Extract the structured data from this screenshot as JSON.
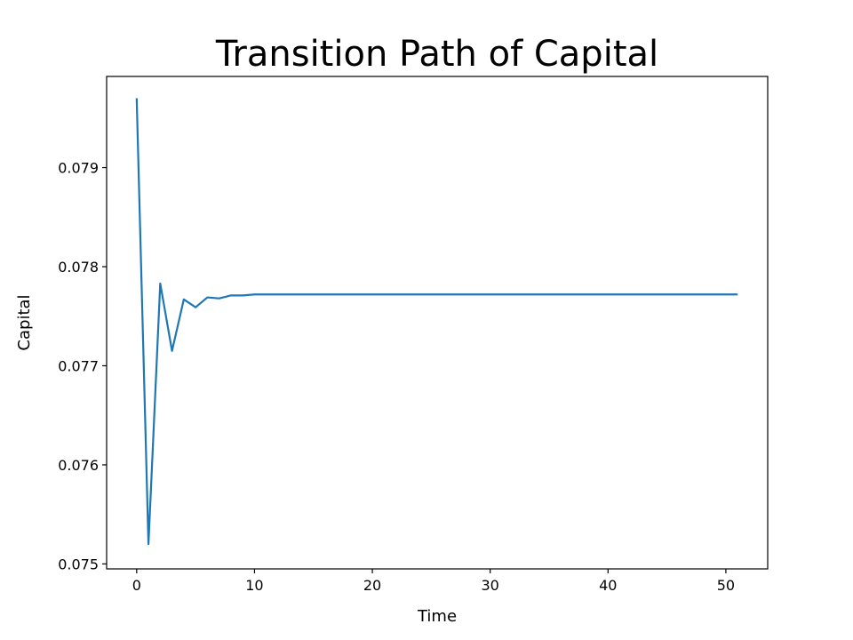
{
  "chart_data": {
    "type": "line",
    "title": "Transition Path of Capital",
    "xlabel": "Time",
    "ylabel": "Capital",
    "xlim": [
      -2.55,
      53.55
    ],
    "ylim": [
      0.07495,
      0.07992
    ],
    "x_ticks": [
      0,
      10,
      20,
      30,
      40,
      50
    ],
    "x_tick_labels": [
      "0",
      "10",
      "20",
      "30",
      "40",
      "50"
    ],
    "y_ticks": [
      0.075,
      0.076,
      0.077,
      0.078,
      0.079
    ],
    "y_tick_labels": [
      "0.075",
      "0.076",
      "0.077",
      "0.078",
      "0.079"
    ],
    "grid": false,
    "line_color": "#1f77b4",
    "series": [
      {
        "name": "Capital",
        "x": [
          0,
          1,
          2,
          3,
          4,
          5,
          6,
          7,
          8,
          9,
          10,
          11,
          12,
          13,
          14,
          15,
          16,
          17,
          18,
          19,
          20,
          21,
          22,
          23,
          24,
          25,
          26,
          27,
          28,
          29,
          30,
          31,
          32,
          33,
          34,
          35,
          36,
          37,
          38,
          39,
          40,
          41,
          42,
          43,
          44,
          45,
          46,
          47,
          48,
          49,
          50,
          51
        ],
        "values": [
          0.0797,
          0.0752,
          0.07783,
          0.07715,
          0.07767,
          0.07759,
          0.07769,
          0.07768,
          0.07771,
          0.07771,
          0.07772,
          0.07772,
          0.07772,
          0.07772,
          0.07772,
          0.07772,
          0.07772,
          0.07772,
          0.07772,
          0.07772,
          0.07772,
          0.07772,
          0.07772,
          0.07772,
          0.07772,
          0.07772,
          0.07772,
          0.07772,
          0.07772,
          0.07772,
          0.07772,
          0.07772,
          0.07772,
          0.07772,
          0.07772,
          0.07772,
          0.07772,
          0.07772,
          0.07772,
          0.07772,
          0.07772,
          0.07772,
          0.07772,
          0.07772,
          0.07772,
          0.07772,
          0.07772,
          0.07772,
          0.07772,
          0.07772,
          0.07772,
          0.07772
        ]
      }
    ]
  }
}
